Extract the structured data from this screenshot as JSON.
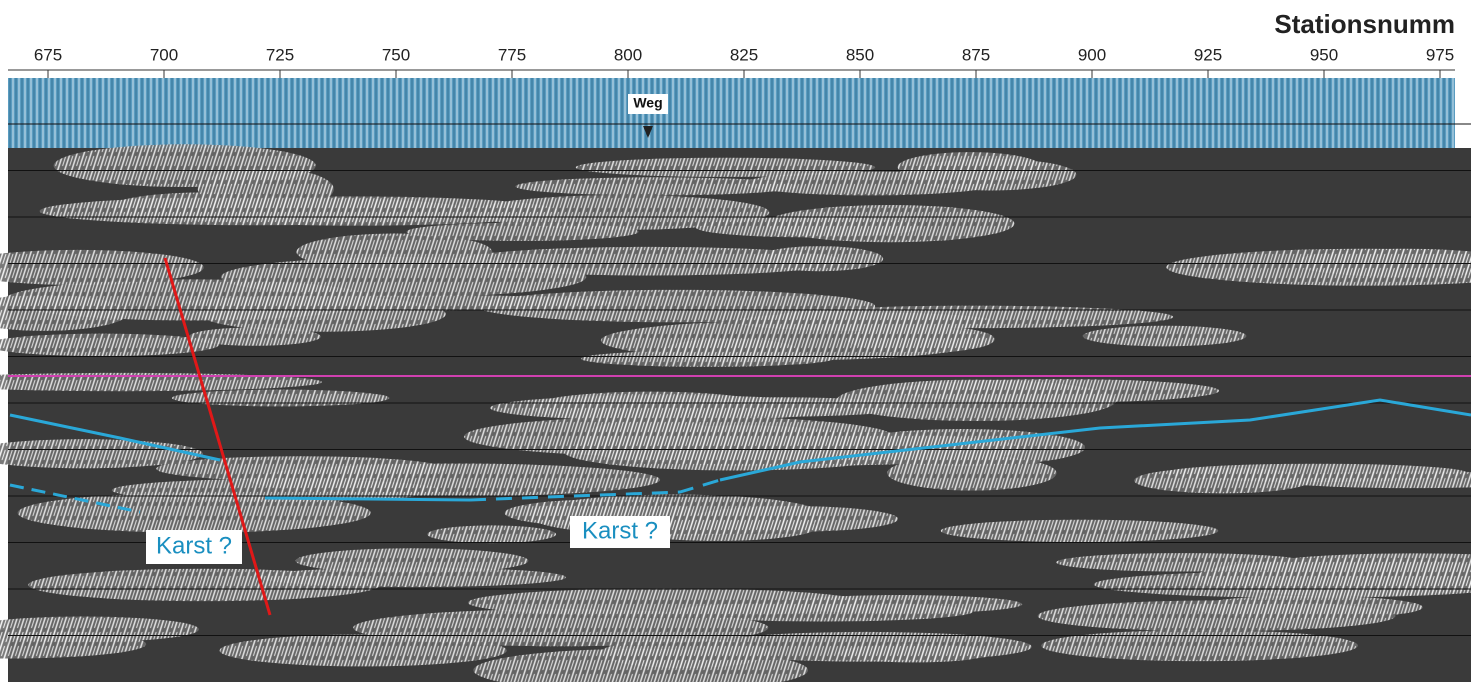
{
  "header": {
    "title": "Stationsnumm"
  },
  "axis": {
    "ticks": [
      "675",
      "700",
      "725",
      "750",
      "775",
      "800",
      "825",
      "850",
      "875",
      "900",
      "925",
      "950",
      "975"
    ]
  },
  "annotations": {
    "road": "Weg",
    "karst_left": "Karst ?",
    "karst_right": "Karst ?"
  }
}
